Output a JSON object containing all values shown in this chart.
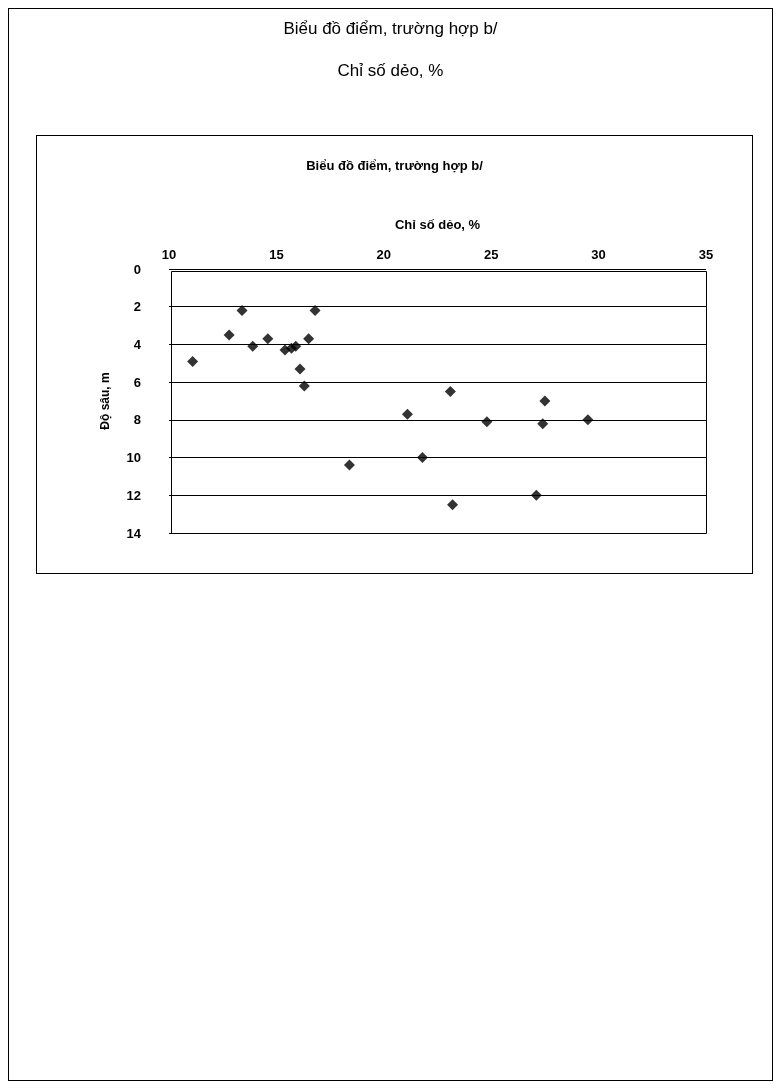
{
  "chart_data": {
    "type": "scatter",
    "title": "Biểu đồ điểm, trường hợp b/",
    "subtitle": "Chỉ số dẻo, %",
    "annotations": [
      "Biểu đồ điểm, trường hợp b/"
    ],
    "xlabel": "Chỉ số dẻo, %",
    "ylabel": "Độ sâu, m",
    "x": [
      11.1,
      13.4,
      16.8,
      12.8,
      13.9,
      14.6,
      15.4,
      15.7,
      15.9,
      16.5,
      16.1,
      16.3,
      23.1,
      27.5,
      21.1,
      24.8,
      27.4,
      29.5,
      18.4,
      21.8,
      27.1,
      23.2
    ],
    "values": [
      4.9,
      2.2,
      2.2,
      3.5,
      4.1,
      3.7,
      4.3,
      4.2,
      4.1,
      3.7,
      5.3,
      6.2,
      6.5,
      7.0,
      7.7,
      8.1,
      8.2,
      8.0,
      10.4,
      10.0,
      12.0,
      12.5
    ],
    "color": "#000000",
    "marker": "diamond",
    "xlim": [
      10,
      35
    ],
    "xticks": [
      10,
      15,
      20,
      25,
      30,
      35
    ],
    "ylim": [
      14,
      0
    ],
    "yticks": [
      0,
      2,
      4,
      6,
      8,
      10,
      12,
      14
    ],
    "grid": "y"
  }
}
